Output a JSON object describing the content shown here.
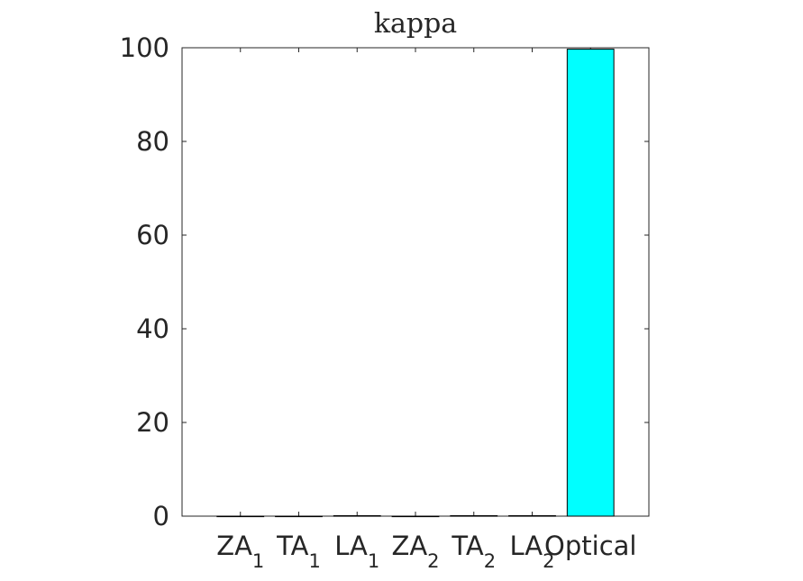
{
  "chart_data": {
    "type": "bar",
    "title": "kappa",
    "categories": [
      {
        "label": "ZA",
        "sub": "1"
      },
      {
        "label": "TA",
        "sub": "1"
      },
      {
        "label": "LA",
        "sub": "1"
      },
      {
        "label": "ZA",
        "sub": "2"
      },
      {
        "label": "TA",
        "sub": "2"
      },
      {
        "label": "LA",
        "sub": "2"
      },
      {
        "label": "Optical",
        "sub": ""
      }
    ],
    "values": [
      0,
      0,
      0.1,
      0,
      0.1,
      0.1,
      99.7
    ],
    "ylim": [
      0,
      100
    ],
    "yticks": [
      0,
      20,
      40,
      60,
      80,
      100
    ],
    "xlabel": "",
    "ylabel": "",
    "grid": false,
    "legend": "none",
    "bar_color": "#00ffff",
    "edge_color": "#000000"
  }
}
